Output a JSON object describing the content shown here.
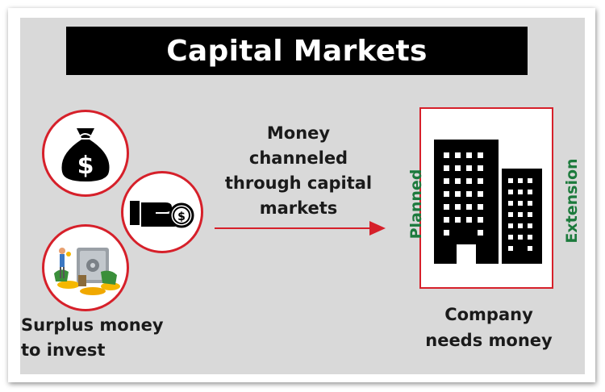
{
  "title": "Capital Markets",
  "source": {
    "label_line1": "Surplus money",
    "label_line2": "to invest",
    "icons": [
      "money-bag-icon",
      "hand-coin-icon",
      "safe-savings-icon"
    ]
  },
  "flow": {
    "line1": "Money",
    "line2": "channeled",
    "line3": "through capital",
    "line4": "markets"
  },
  "target": {
    "label_line1": "Company",
    "label_line2": "needs money",
    "left_side": "Planned",
    "right_side": "Extension",
    "icon": "office-buildings-icon"
  },
  "colors": {
    "accent_red": "#d6202a",
    "side_green": "#1c7a3c",
    "panel_gray": "#d9d9d9",
    "title_black": "#000000"
  }
}
